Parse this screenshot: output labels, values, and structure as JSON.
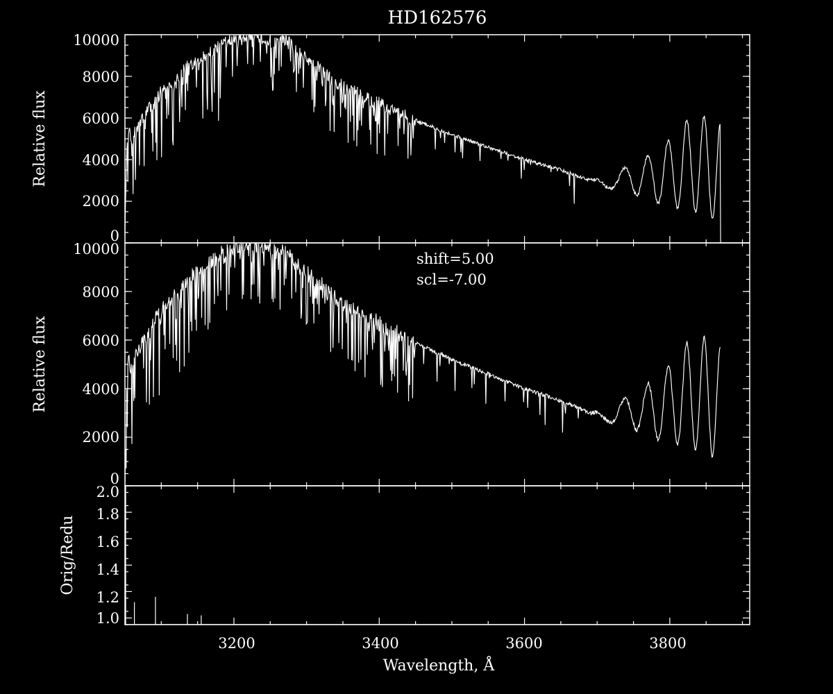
{
  "chart_data": [
    {
      "type": "line",
      "title": "HD162576",
      "ylabel": "Relative flux",
      "xlim": [
        3050,
        3910
      ],
      "ylim": [
        0,
        10000
      ],
      "xticks": [
        3200,
        3400,
        3600,
        3800
      ],
      "yticks": [
        "0",
        "2000",
        "4000",
        "6000",
        "8000",
        "10000"
      ],
      "grid": false,
      "series_points": [
        [
          3050,
          400
        ],
        [
          3052,
          4000
        ],
        [
          3055,
          5600
        ],
        [
          3058,
          4800
        ],
        [
          3065,
          5400
        ],
        [
          3080,
          6300
        ],
        [
          3100,
          7300
        ],
        [
          3120,
          7900
        ],
        [
          3140,
          8600
        ],
        [
          3160,
          9000
        ],
        [
          3180,
          9500
        ],
        [
          3200,
          9900
        ],
        [
          3220,
          10000
        ],
        [
          3240,
          9800
        ],
        [
          3260,
          9600
        ],
        [
          3270,
          9800
        ],
        [
          3290,
          9100
        ],
        [
          3320,
          8300
        ],
        [
          3350,
          7500
        ],
        [
          3400,
          6700
        ],
        [
          3450,
          5900
        ],
        [
          3500,
          5200
        ],
        [
          3550,
          4600
        ],
        [
          3600,
          4000
        ],
        [
          3650,
          3500
        ],
        [
          3690,
          3000
        ],
        [
          3870,
          5800
        ]
      ],
      "interference_fringes": {
        "start": 3690,
        "maxima": [
          3000,
          3600,
          4200,
          4900,
          5900,
          6100,
          5800
        ],
        "minima": [
          2600,
          2300,
          1900,
          1700,
          1500,
          1200
        ]
      }
    },
    {
      "type": "line",
      "ylabel": "Relative flux",
      "xlim": [
        3050,
        3910
      ],
      "ylim": [
        0,
        10000
      ],
      "xticks": [
        3200,
        3400,
        3600,
        3800
      ],
      "yticks": [
        "0",
        "2000",
        "4000",
        "6000",
        "8000",
        "10000"
      ],
      "annotations": [
        "shift=5.00",
        "scl=-7.00"
      ],
      "series_points": [
        [
          3050,
          400
        ],
        [
          3052,
          4000
        ],
        [
          3055,
          5600
        ],
        [
          3058,
          4800
        ],
        [
          3065,
          5400
        ],
        [
          3080,
          6300
        ],
        [
          3100,
          7300
        ],
        [
          3120,
          7900
        ],
        [
          3140,
          8600
        ],
        [
          3160,
          9000
        ],
        [
          3180,
          9500
        ],
        [
          3200,
          9900
        ],
        [
          3220,
          10000
        ],
        [
          3240,
          9800
        ],
        [
          3260,
          9600
        ],
        [
          3270,
          9800
        ],
        [
          3290,
          9100
        ],
        [
          3320,
          8300
        ],
        [
          3350,
          7500
        ],
        [
          3400,
          6700
        ],
        [
          3450,
          5900
        ],
        [
          3500,
          5200
        ],
        [
          3550,
          4600
        ],
        [
          3600,
          4000
        ],
        [
          3650,
          3500
        ],
        [
          3690,
          3000
        ],
        [
          3870,
          5800
        ]
      ],
      "interference_fringes": {
        "start": 3690,
        "maxima": [
          3000,
          3600,
          4200,
          4900,
          5900,
          6100,
          5800
        ],
        "minima": [
          2600,
          2300,
          1900,
          1700,
          1500,
          1200
        ]
      }
    },
    {
      "type": "line",
      "ylabel": "Orig/Redu",
      "xlabel": "Wavelength, Å",
      "xlim": [
        3050,
        3910
      ],
      "ylim": [
        0.95,
        2.0
      ],
      "xticks": [
        3200,
        3400,
        3600,
        3800
      ],
      "yticks": [
        "1.0",
        "1.2",
        "1.4",
        "1.6",
        "1.8",
        "2.0"
      ],
      "spikes": [
        {
          "x": 3051,
          "y": 2.0
        },
        {
          "x": 3063,
          "y": 1.12
        },
        {
          "x": 3092,
          "y": 1.16
        },
        {
          "x": 3136,
          "y": 1.03
        },
        {
          "x": 3155,
          "y": 1.02
        }
      ]
    }
  ]
}
